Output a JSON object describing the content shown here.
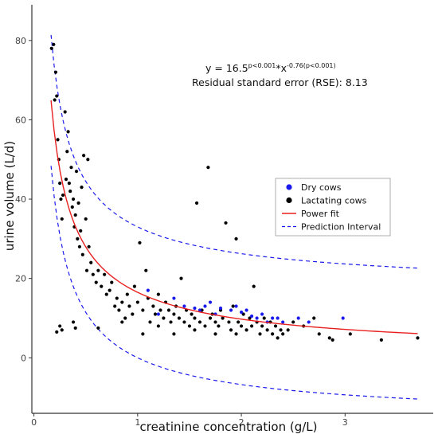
{
  "chart_data": {
    "type": "scatter",
    "xlabel": "creatinine concentration (g/L)",
    "ylabel": "urine volume (L/d)",
    "xlim": [
      -0.02,
      3.85
    ],
    "ylim": [
      -14,
      89
    ],
    "xticks": [
      0,
      1,
      2,
      3
    ],
    "yticks": [
      0,
      20,
      40,
      60,
      80
    ],
    "grid": false,
    "legend_position": "center-right",
    "annotation": {
      "eq_prefix": "y = 16.5",
      "sup1": "p<0.001",
      "eq_mid": "*x",
      "sup2": "-0.76(p<0.001)",
      "rse": "Residual standard error (RSE): 8.13"
    },
    "colors": {
      "dry": "#1a1aee",
      "lactating": "#000000",
      "fit": "#e8201f",
      "interval": "#1a1aee"
    },
    "legend": [
      {
        "label": "Dry cows",
        "kind": "dot",
        "color": "#1a1aee"
      },
      {
        "label": "Lactating cows",
        "kind": "dot",
        "color": "#000000"
      },
      {
        "label": "Power fit",
        "kind": "line",
        "color": "#e8201f"
      },
      {
        "label": "Prediction Interval",
        "kind": "dash",
        "color": "#1a1aee"
      }
    ],
    "series": [
      {
        "name": "Dry cows",
        "color": "#1a1aee",
        "points": [
          [
            1.1,
            17
          ],
          [
            1.2,
            11
          ],
          [
            1.35,
            15
          ],
          [
            1.45,
            13
          ],
          [
            1.55,
            12.5
          ],
          [
            1.6,
            12
          ],
          [
            1.65,
            13
          ],
          [
            1.7,
            14
          ],
          [
            1.75,
            11
          ],
          [
            1.8,
            12.5
          ],
          [
            1.9,
            12
          ],
          [
            1.95,
            13
          ],
          [
            2.0,
            11.5
          ],
          [
            2.05,
            12
          ],
          [
            2.1,
            10.5
          ],
          [
            2.15,
            10
          ],
          [
            2.2,
            11
          ],
          [
            2.25,
            9
          ],
          [
            2.3,
            10
          ],
          [
            2.35,
            10
          ],
          [
            2.4,
            9
          ],
          [
            2.55,
            10
          ],
          [
            2.65,
            9
          ],
          [
            2.98,
            10
          ]
        ]
      },
      {
        "name": "Lactating cows",
        "color": "#000000",
        "points": [
          [
            0.17,
            78
          ],
          [
            0.19,
            79
          ],
          [
            0.2,
            65
          ],
          [
            0.21,
            72
          ],
          [
            0.22,
            66
          ],
          [
            0.23,
            55
          ],
          [
            0.24,
            50
          ],
          [
            0.25,
            44
          ],
          [
            0.26,
            40
          ],
          [
            0.27,
            35
          ],
          [
            0.28,
            41
          ],
          [
            0.3,
            62
          ],
          [
            0.31,
            45
          ],
          [
            0.32,
            52
          ],
          [
            0.33,
            57
          ],
          [
            0.34,
            44
          ],
          [
            0.35,
            42
          ],
          [
            0.36,
            48
          ],
          [
            0.37,
            38
          ],
          [
            0.38,
            40
          ],
          [
            0.39,
            33
          ],
          [
            0.4,
            36
          ],
          [
            0.41,
            47
          ],
          [
            0.42,
            30
          ],
          [
            0.43,
            39
          ],
          [
            0.44,
            28
          ],
          [
            0.45,
            32
          ],
          [
            0.46,
            43
          ],
          [
            0.47,
            26
          ],
          [
            0.48,
            51
          ],
          [
            0.5,
            35
          ],
          [
            0.51,
            22
          ],
          [
            0.52,
            50
          ],
          [
            0.53,
            28
          ],
          [
            0.55,
            24
          ],
          [
            0.57,
            21
          ],
          [
            0.6,
            19
          ],
          [
            0.62,
            22
          ],
          [
            0.65,
            18
          ],
          [
            0.68,
            21
          ],
          [
            0.7,
            16
          ],
          [
            0.73,
            17
          ],
          [
            0.75,
            19
          ],
          [
            0.78,
            13
          ],
          [
            0.8,
            15
          ],
          [
            0.82,
            12
          ],
          [
            0.85,
            14
          ],
          [
            0.88,
            10
          ],
          [
            0.9,
            16
          ],
          [
            0.92,
            13
          ],
          [
            0.95,
            11
          ],
          [
            0.97,
            18
          ],
          [
            1.0,
            14
          ],
          [
            1.02,
            29
          ],
          [
            1.05,
            12
          ],
          [
            1.08,
            22
          ],
          [
            1.1,
            15
          ],
          [
            1.12,
            9
          ],
          [
            1.15,
            13
          ],
          [
            1.17,
            11
          ],
          [
            1.2,
            16
          ],
          [
            1.22,
            12
          ],
          [
            1.25,
            10
          ],
          [
            1.27,
            14
          ],
          [
            1.3,
            12
          ],
          [
            1.32,
            9
          ],
          [
            1.35,
            11
          ],
          [
            1.37,
            13
          ],
          [
            1.4,
            10
          ],
          [
            1.42,
            20
          ],
          [
            1.45,
            9
          ],
          [
            1.47,
            12
          ],
          [
            1.5,
            8
          ],
          [
            1.52,
            11
          ],
          [
            1.55,
            10
          ],
          [
            1.57,
            39
          ],
          [
            1.6,
            9
          ],
          [
            1.62,
            12
          ],
          [
            1.65,
            8
          ],
          [
            1.68,
            48
          ],
          [
            1.7,
            10
          ],
          [
            1.72,
            11
          ],
          [
            1.75,
            9
          ],
          [
            1.78,
            8
          ],
          [
            1.8,
            12
          ],
          [
            1.82,
            10
          ],
          [
            1.85,
            34
          ],
          [
            1.88,
            9
          ],
          [
            1.9,
            7
          ],
          [
            1.92,
            13
          ],
          [
            1.95,
            30
          ],
          [
            1.97,
            9
          ],
          [
            2.0,
            8
          ],
          [
            2.02,
            11
          ],
          [
            2.05,
            7
          ],
          [
            2.08,
            10
          ],
          [
            2.1,
            8
          ],
          [
            2.12,
            18
          ],
          [
            2.15,
            9
          ],
          [
            2.18,
            6
          ],
          [
            2.2,
            8
          ],
          [
            2.22,
            10
          ],
          [
            2.25,
            7
          ],
          [
            2.28,
            9
          ],
          [
            2.3,
            6
          ],
          [
            2.33,
            8
          ],
          [
            2.35,
            5
          ],
          [
            2.38,
            7
          ],
          [
            2.4,
            6
          ],
          [
            2.45,
            7
          ],
          [
            2.5,
            9
          ],
          [
            2.6,
            8
          ],
          [
            2.7,
            10
          ],
          [
            2.75,
            6
          ],
          [
            2.85,
            5
          ],
          [
            2.88,
            4.5
          ],
          [
            3.05,
            6
          ],
          [
            3.35,
            4.5
          ],
          [
            3.7,
            5
          ],
          [
            0.22,
            6.5
          ],
          [
            0.25,
            8
          ],
          [
            0.27,
            7
          ],
          [
            0.38,
            9
          ],
          [
            0.4,
            7.5
          ],
          [
            0.62,
            7.5
          ],
          [
            0.85,
            9
          ],
          [
            1.05,
            6
          ],
          [
            1.2,
            8
          ],
          [
            1.35,
            6
          ],
          [
            1.55,
            7
          ],
          [
            1.75,
            6
          ],
          [
            1.95,
            6
          ]
        ]
      }
    ],
    "fit": {
      "name": "Power fit",
      "a": 16.5,
      "b": -0.76
    },
    "prediction_interval": {
      "upper_offset": 16.5,
      "lower_offset": -16.5
    }
  }
}
